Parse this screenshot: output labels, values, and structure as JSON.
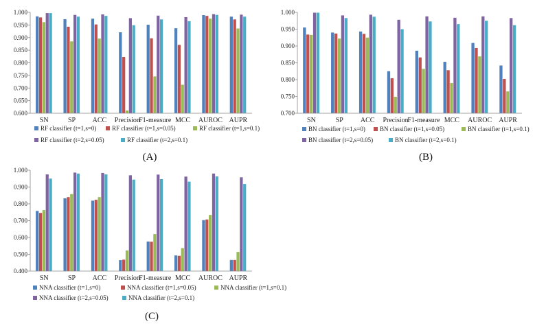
{
  "colors": [
    "#4f81bd",
    "#c0504d",
    "#9bbb59",
    "#8064a2",
    "#4bacc6"
  ],
  "chart_data": [
    {
      "id": "A",
      "type": "bar",
      "panel_label": "(A)",
      "categories": [
        "SN",
        "SP",
        "ACC",
        "Precision",
        "F1-measure",
        "MCC",
        "AUROC",
        "AUPR"
      ],
      "ylim": [
        0.6,
        1.0
      ],
      "yticks": [
        "0.600",
        "0.650",
        "0.700",
        "0.750",
        "0.800",
        "0.850",
        "0.900",
        "0.950",
        "1.000"
      ],
      "grid": false,
      "legend_position": "bottom",
      "series": [
        {
          "name": "RF classifier (t=1,s=0)",
          "values": [
            0.984,
            0.973,
            0.975,
            0.921,
            0.951,
            0.937,
            0.989,
            0.983
          ]
        },
        {
          "name": "RF classifier (t=1,s=0.05)",
          "values": [
            0.98,
            0.943,
            0.952,
            0.823,
            0.897,
            0.871,
            0.986,
            0.972
          ]
        },
        {
          "name": "RF classifier (t=1,s=0.1)",
          "values": [
            0.961,
            0.885,
            0.896,
            0.611,
            0.746,
            0.713,
            0.975,
            0.936
          ]
        },
        {
          "name": "RF classifier (t=2,s=0.05)",
          "values": [
            0.997,
            0.99,
            0.992,
            0.977,
            0.987,
            0.981,
            0.993,
            0.991
          ]
        },
        {
          "name": "RF classifier (t=2,s=0.1)",
          "values": [
            0.997,
            0.983,
            0.986,
            0.949,
            0.972,
            0.965,
            0.99,
            0.983
          ]
        }
      ]
    },
    {
      "id": "B",
      "type": "bar",
      "panel_label": "(B)",
      "categories": [
        "SN",
        "SP",
        "ACC",
        "Precision",
        "F1-measure",
        "MCC",
        "AUROC",
        "AUPR"
      ],
      "ylim": [
        0.7,
        1.0
      ],
      "yticks": [
        "0.700",
        "0.750",
        "0.800",
        "0.850",
        "0.900",
        "0.950",
        "1.000"
      ],
      "grid": false,
      "legend_position": "bottom",
      "series": [
        {
          "name": "BN classifier (t=1,s=0)",
          "values": [
            0.955,
            0.94,
            0.943,
            0.825,
            0.886,
            0.853,
            0.909,
            0.842
          ]
        },
        {
          "name": "BN classifier (t=1,s=0.05)",
          "values": [
            0.934,
            0.937,
            0.936,
            0.804,
            0.866,
            0.828,
            0.894,
            0.802
          ]
        },
        {
          "name": "BN classifier (t=1,s=0.1)",
          "values": [
            0.933,
            0.922,
            0.925,
            0.749,
            0.832,
            0.79,
            0.869,
            0.765
          ]
        },
        {
          "name": "BN classifier (t=2,s=0.05)",
          "values": [
            0.999,
            0.991,
            0.993,
            0.978,
            0.988,
            0.984,
            0.988,
            0.983
          ]
        },
        {
          "name": "BN classifier (t=2,s=0.1)",
          "values": [
            0.999,
            0.983,
            0.987,
            0.95,
            0.973,
            0.965,
            0.975,
            0.962
          ]
        }
      ]
    },
    {
      "id": "C",
      "type": "bar",
      "panel_label": "(C)",
      "categories": [
        "SN",
        "SP",
        "ACC",
        "Precision",
        "F1-measure",
        "MCC",
        "AUROC",
        "AUPR"
      ],
      "ylim": [
        0.4,
        1.0
      ],
      "yticks": [
        "0.400",
        "0.500",
        "0.600",
        "0.700",
        "0.800",
        "0.900",
        "1.000"
      ],
      "grid": false,
      "legend_position": "bottom",
      "series": [
        {
          "name": "NNA classifier (t=1,s=0)",
          "values": [
            0.758,
            0.833,
            0.819,
            0.465,
            0.576,
            0.493,
            0.703,
            0.466
          ]
        },
        {
          "name": "NNA classifier (t=1,s=0.05)",
          "values": [
            0.746,
            0.84,
            0.824,
            0.468,
            0.575,
            0.491,
            0.707,
            0.466
          ]
        },
        {
          "name": "NNA classifier (t=1,s=0.1)",
          "values": [
            0.763,
            0.858,
            0.84,
            0.523,
            0.62,
            0.537,
            0.734,
            0.514
          ]
        },
        {
          "name": "NNA classifier (t=2,s=0.05)",
          "values": [
            0.975,
            0.986,
            0.984,
            0.97,
            0.974,
            0.962,
            0.98,
            0.958
          ]
        },
        {
          "name": "NNA classifier (t=2,s=0.1)",
          "values": [
            0.95,
            0.98,
            0.975,
            0.944,
            0.947,
            0.932,
            0.963,
            0.918
          ]
        }
      ]
    }
  ]
}
